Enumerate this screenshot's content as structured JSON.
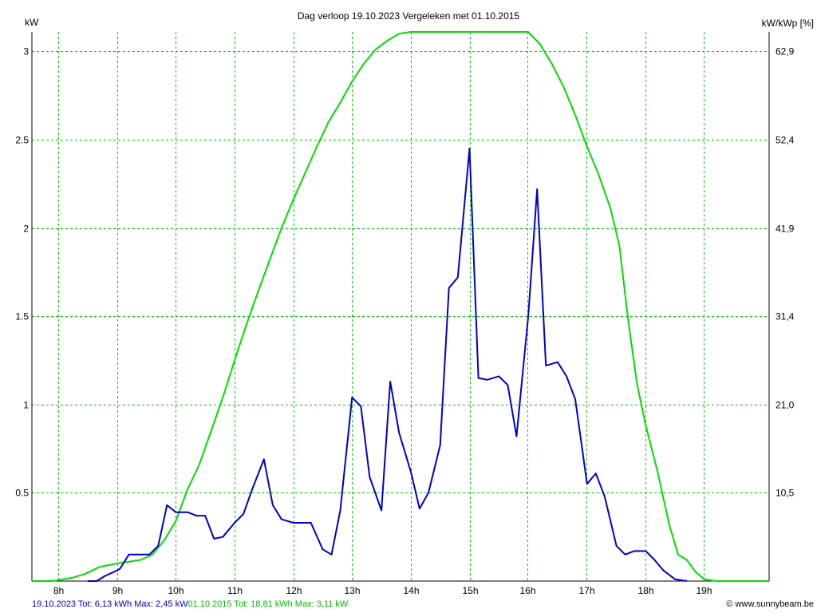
{
  "chart_data": {
    "type": "line",
    "title": "Dag  verloop 19.10.2023   Vergeleken met 01.10.2015",
    "ylabel_left": "kW",
    "ylabel_right": "kW/kWp [%]",
    "y_ticks_left": [
      "3",
      "2.5",
      "2",
      "1.5",
      "1",
      "0.5"
    ],
    "y_ticks_left_values": [
      3,
      2.5,
      2,
      1.5,
      1,
      0.5
    ],
    "y_ticks_right": [
      "62,9",
      "52,4",
      "41,9",
      "31,4",
      "21,0",
      "10,5"
    ],
    "x_ticks": [
      "8h",
      "9h",
      "10h",
      "11h",
      "12h",
      "13h",
      "14h",
      "15h",
      "16h",
      "17h",
      "18h",
      "19h"
    ],
    "x_tick_values": [
      8,
      9,
      10,
      11,
      12,
      13,
      14,
      15,
      15.99,
      16.99,
      17.99,
      18.99
    ],
    "xlim": [
      7.55,
      20.1
    ],
    "ylim": [
      0,
      3.11
    ],
    "grid": true,
    "series": [
      {
        "name": "19.10.2023",
        "color": "#0000cc",
        "x": [
          8.5,
          8.65,
          8.8,
          9.0,
          9.05,
          9.2,
          9.4,
          9.55,
          9.7,
          9.85,
          10.0,
          10.2,
          10.35,
          10.5,
          10.65,
          10.8,
          11.0,
          11.15,
          11.3,
          11.5,
          11.65,
          11.8,
          12.0,
          12.15,
          12.3,
          12.5,
          12.65,
          12.8,
          13.0,
          13.15,
          13.3,
          13.5,
          13.65,
          13.8,
          14.0,
          14.15,
          14.3,
          14.5,
          14.65,
          14.8,
          15.0,
          15.15,
          15.3,
          15.5,
          15.65,
          15.8,
          16.0,
          16.15,
          16.3,
          16.5,
          16.65,
          16.8,
          17.0,
          17.15,
          17.3,
          17.5,
          17.65,
          17.8,
          18.0,
          18.15,
          18.3,
          18.5,
          18.7
        ],
        "y": [
          0.0,
          0.0,
          0.03,
          0.06,
          0.07,
          0.15,
          0.15,
          0.15,
          0.2,
          0.43,
          0.39,
          0.39,
          0.37,
          0.37,
          0.24,
          0.25,
          0.33,
          0.38,
          0.52,
          0.69,
          0.43,
          0.35,
          0.33,
          0.33,
          0.33,
          0.18,
          0.15,
          0.4,
          1.04,
          0.99,
          0.59,
          0.4,
          1.13,
          0.84,
          0.62,
          0.41,
          0.5,
          0.77,
          1.66,
          1.72,
          2.45,
          1.15,
          1.14,
          1.16,
          1.11,
          0.82,
          1.5,
          2.22,
          1.22,
          1.24,
          1.16,
          1.03,
          0.55,
          0.61,
          0.48,
          0.2,
          0.15,
          0.17,
          0.17,
          0.12,
          0.06,
          0.01,
          0.0
        ]
      },
      {
        "name": "01.10.2015",
        "color": "#00dd00",
        "x": [
          7.55,
          7.9,
          8.25,
          8.45,
          8.7,
          8.85,
          9.0,
          9.2,
          9.4,
          9.6,
          9.8,
          10.0,
          10.2,
          10.4,
          10.6,
          10.8,
          11.0,
          11.2,
          11.4,
          11.6,
          11.8,
          12.0,
          12.2,
          12.4,
          12.6,
          12.8,
          13.0,
          13.2,
          13.4,
          13.6,
          13.8,
          14.0,
          14.1,
          14.3,
          14.4,
          14.6,
          14.8,
          15.0,
          15.2,
          15.4,
          15.6,
          15.8,
          16.0,
          16.2,
          16.4,
          16.6,
          16.8,
          17.0,
          17.2,
          17.4,
          17.55,
          17.7,
          17.85,
          18.0,
          18.2,
          18.4,
          18.55,
          18.7,
          18.85,
          19.0,
          19.2,
          19.5,
          20.1
        ],
        "y": [
          0.0,
          0.0,
          0.02,
          0.04,
          0.08,
          0.09,
          0.1,
          0.11,
          0.12,
          0.15,
          0.23,
          0.34,
          0.52,
          0.66,
          0.85,
          1.04,
          1.25,
          1.45,
          1.64,
          1.82,
          2.0,
          2.16,
          2.31,
          2.46,
          2.6,
          2.71,
          2.83,
          2.93,
          3.01,
          3.06,
          3.1,
          3.11,
          3.11,
          3.11,
          3.11,
          3.11,
          3.11,
          3.11,
          3.11,
          3.11,
          3.11,
          3.11,
          3.11,
          3.04,
          2.93,
          2.8,
          2.64,
          2.46,
          2.3,
          2.11,
          1.9,
          1.48,
          1.12,
          0.88,
          0.62,
          0.32,
          0.15,
          0.12,
          0.05,
          0.01,
          0.0,
          0.0,
          0.0
        ]
      }
    ]
  },
  "footer": {
    "series1_summary": "19.10.2023 Tot: 6,13 kWh Max: 2,45 kW",
    "series2_summary": "01.10.2015 Tot: 18,81 kWh Max: 3,11 kW",
    "credit": "© www.sunnybeam.be"
  },
  "colors": {
    "grid": "#00cc00",
    "series1": "#0000cc",
    "series2": "#00dd00",
    "frame": "#000000"
  }
}
